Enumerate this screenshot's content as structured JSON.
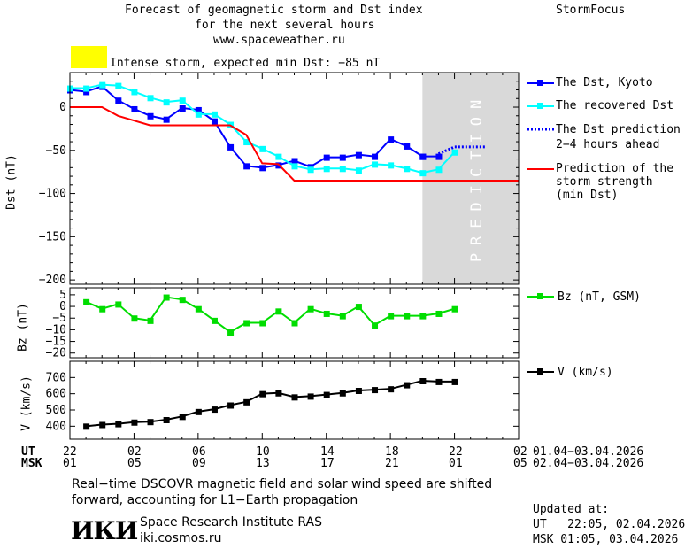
{
  "header": {
    "title_line1": "Forecast of geomagnetic storm and Dst index",
    "title_line2": "for the next several hours",
    "url": "www.spaceweather.ru",
    "brand": "StormFocus",
    "alert_text": "Intense storm, expected min Dst: −85 nT",
    "alert_color": "#ffff00"
  },
  "prediction_text": "PREDICTION",
  "axis_labels": {
    "dst": "Dst (nT)",
    "bz": "Bz (nT)",
    "v": "V (km/s)"
  },
  "time_axis": {
    "ut_label": "UT",
    "msk_label": "MSK",
    "ut_ticks": [
      "22",
      "02",
      "06",
      "10",
      "14",
      "18",
      "22",
      "02"
    ],
    "msk_ticks": [
      "01",
      "05",
      "09",
      "13",
      "17",
      "21",
      "01",
      "05"
    ],
    "ut_range": "01.04−03.04.2026",
    "msk_range": "02.04−03.04.2026"
  },
  "legend": {
    "dst_kyoto": "The Dst, Kyoto",
    "dst_recovered": "The recovered Dst",
    "dst_prediction_l1": "The Dst prediction",
    "dst_prediction_l2": "2−4 hours ahead",
    "storm_l1": "Prediction of the",
    "storm_l2": "storm strength",
    "storm_l3": "(min Dst)",
    "bz": "Bz (nT, GSM)",
    "v": "V (km/s)"
  },
  "footer": {
    "note_line1": "Real−time DSCOVR magnetic field and solar wind speed are shifted",
    "note_line2": "forward, accounting for L1−Earth propagation",
    "logo": "ИКИ",
    "institute": "Space Research Institute RAS",
    "site": "iki.cosmos.ru",
    "updated_label": "Updated at:",
    "updated_ut": "UT   22:05, 02.04.2026",
    "updated_msk": "MSK 01:05, 03.04.2026"
  },
  "chart_data": [
    {
      "type": "line",
      "title": "Forecast of geomagnetic storm and Dst index",
      "ylabel": "Dst (nT)",
      "ylim": [
        -205,
        40
      ],
      "xlim": [
        22,
        50
      ],
      "yticks": [
        0,
        -50,
        -100,
        -150,
        -200
      ],
      "shaded_region_x": [
        44,
        50
      ],
      "series": [
        {
          "name": "The Dst, Kyoto",
          "color": "#0000ff",
          "marker": "square",
          "x": [
            22,
            23,
            24,
            25,
            26,
            27,
            28,
            29,
            30,
            31,
            32,
            33,
            34,
            35,
            36,
            37,
            38,
            39,
            40,
            41,
            42,
            43,
            44
          ],
          "values": [
            20,
            18,
            24,
            8,
            -2,
            -10,
            -14,
            -1,
            -3,
            -16,
            -46,
            -68,
            -70,
            -67,
            -62,
            -69,
            -58,
            -58,
            -55,
            -57,
            -37,
            -45,
            -57
          ]
        },
        {
          "name": "The Dst, Kyoto",
          "color": "#0000ff",
          "marker": "square",
          "x": [
            44,
            45
          ],
          "values": [
            -57,
            -57
          ]
        },
        {
          "name": "The recovered Dst",
          "color": "#00ffff",
          "marker": "square",
          "x": [
            22,
            23,
            24,
            25,
            26,
            27,
            28,
            29,
            30,
            31,
            32,
            33,
            34,
            35,
            36,
            37,
            38,
            39,
            40,
            41,
            42,
            43,
            44,
            45,
            46
          ],
          "values": [
            22,
            22,
            26,
            25,
            18,
            11,
            6,
            8,
            -8,
            -8,
            -20,
            -40,
            -48,
            -57,
            -68,
            -72,
            -71,
            -71,
            -73,
            -66,
            -67,
            -71,
            -76,
            -72,
            -52
          ]
        },
        {
          "name": "The Dst prediction",
          "color": "#0000ff",
          "style": "dotted",
          "x": [
            45,
            46,
            47,
            48
          ],
          "values": [
            -54,
            -46,
            -46,
            -46
          ]
        },
        {
          "name": "Prediction of the storm strength",
          "color": "#ff0000",
          "x": [
            22,
            24,
            25,
            27,
            32,
            33,
            34,
            35,
            36,
            50
          ],
          "values": [
            0,
            0,
            -10,
            -21,
            -21,
            -32,
            -65,
            -66,
            -85,
            -85
          ]
        }
      ]
    },
    {
      "type": "line",
      "ylabel": "Bz (nT)",
      "ylim": [
        -22,
        8
      ],
      "xlim": [
        22,
        50
      ],
      "yticks": [
        5,
        0,
        -5,
        -10,
        -15,
        -20
      ],
      "series": [
        {
          "name": "Bz (nT, GSM)",
          "color": "#00dd00",
          "marker": "square",
          "x": [
            23,
            24,
            25,
            26,
            27,
            28,
            29,
            30,
            31,
            32,
            33,
            34,
            35,
            36,
            37,
            38,
            39,
            40,
            41,
            42,
            43,
            44,
            45,
            46
          ],
          "values": [
            2,
            -1,
            1,
            -5,
            -6,
            4,
            3,
            -1,
            -6,
            -11,
            -7,
            -7,
            -2,
            -7,
            -1,
            -3,
            -4,
            0,
            -8,
            -4,
            -4,
            -4,
            -3,
            -1
          ]
        }
      ]
    },
    {
      "type": "line",
      "ylabel": "V (km/s)",
      "ylim": [
        320,
        800
      ],
      "xlim": [
        22,
        50
      ],
      "yticks": [
        400,
        500,
        600,
        700
      ],
      "series": [
        {
          "name": "V (km/s)",
          "color": "#000000",
          "marker": "square",
          "x": [
            23,
            24,
            25,
            26,
            27,
            28,
            29,
            30,
            31,
            32,
            33,
            34,
            35,
            36,
            37,
            38,
            39,
            40,
            41,
            42,
            43,
            44,
            45,
            46
          ],
          "values": [
            400,
            410,
            415,
            425,
            428,
            440,
            460,
            490,
            505,
            530,
            550,
            600,
            605,
            580,
            585,
            595,
            605,
            620,
            625,
            630,
            655,
            680,
            675,
            675
          ]
        }
      ]
    }
  ]
}
